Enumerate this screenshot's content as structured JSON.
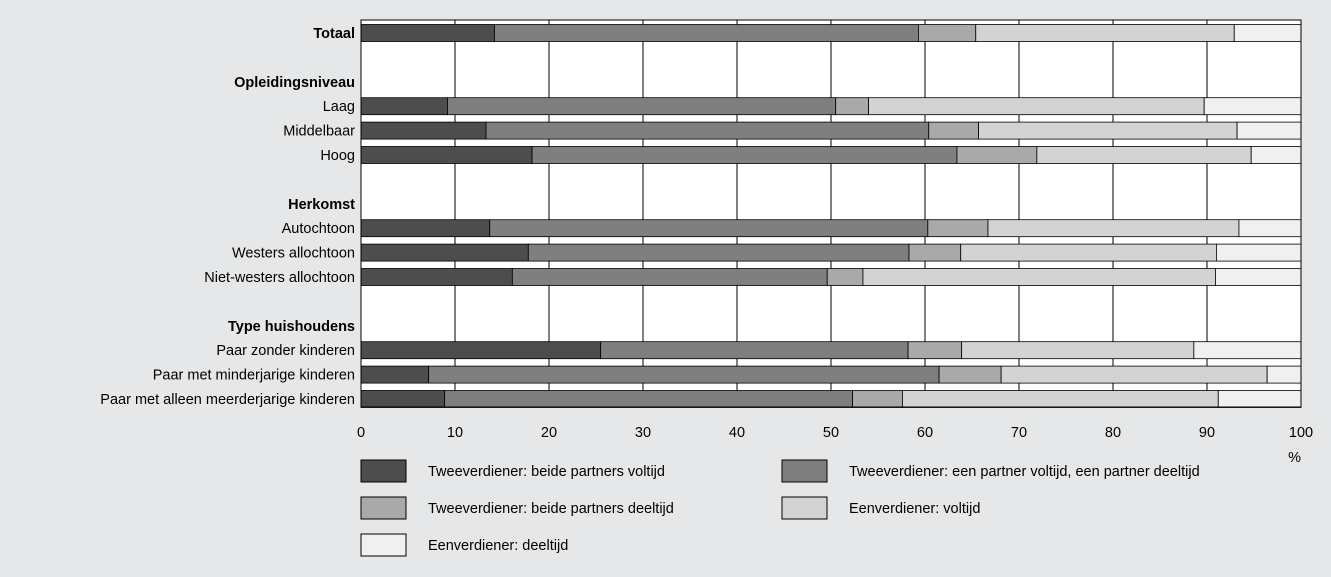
{
  "chart_data": {
    "type": "bar",
    "orientation": "horizontal",
    "stacked": true,
    "xunit": "%",
    "xlim": [
      0,
      100
    ],
    "xticks": [
      "0",
      "10",
      "20",
      "30",
      "40",
      "50",
      "60",
      "70",
      "80",
      "90",
      "100"
    ],
    "grid": true,
    "legend_position": "bottom",
    "categories": [
      {
        "label": "Totaal",
        "header": true,
        "values": [
          14.2,
          45.1,
          6.1,
          27.5,
          7.1
        ]
      },
      {
        "label": "",
        "spacer": true
      },
      {
        "label": "Opleidingsniveau",
        "header": true
      },
      {
        "label": "Laag",
        "values": [
          9.2,
          41.3,
          3.5,
          35.7,
          10.3
        ]
      },
      {
        "label": "Middelbaar",
        "values": [
          13.3,
          47.1,
          5.3,
          27.5,
          6.8
        ]
      },
      {
        "label": "Hoog",
        "values": [
          18.2,
          45.2,
          8.5,
          22.8,
          5.3
        ]
      },
      {
        "label": "",
        "spacer": true
      },
      {
        "label": "Herkomst",
        "header": true
      },
      {
        "label": "Autochtoon",
        "values": [
          13.7,
          46.6,
          6.4,
          26.7,
          6.6
        ]
      },
      {
        "label": "Westers allochtoon",
        "values": [
          17.8,
          40.5,
          5.5,
          27.2,
          9.0
        ]
      },
      {
        "label": "Niet-westers allochtoon",
        "values": [
          16.1,
          33.5,
          3.8,
          37.5,
          9.1
        ]
      },
      {
        "label": "",
        "spacer": true
      },
      {
        "label": "Type huishoudens",
        "header": true
      },
      {
        "label": "Paar zonder kinderen",
        "values": [
          25.5,
          32.7,
          5.7,
          24.7,
          11.4
        ]
      },
      {
        "label": "Paar met minderjarige kinderen",
        "values": [
          7.2,
          54.3,
          6.6,
          28.3,
          3.6
        ]
      },
      {
        "label": "Paar met alleen meerderjarige kinderen",
        "values": [
          8.9,
          43.4,
          5.3,
          33.6,
          8.8
        ]
      }
    ],
    "series": [
      {
        "name": "Tweeverdiener: beide partners voltijd",
        "color": "#4d4d4d"
      },
      {
        "name": "Tweeverdiener: een partner voltijd, een partner deeltijd",
        "color": "#7f7f7f"
      },
      {
        "name": "Tweeverdiener: beide partners deeltijd",
        "color": "#a9a9a9"
      },
      {
        "name": "Eenverdiener: voltijd",
        "color": "#d3d3d3"
      },
      {
        "name": "Eenverdiener: deeltijd",
        "color": "#f0f0f0"
      }
    ]
  }
}
